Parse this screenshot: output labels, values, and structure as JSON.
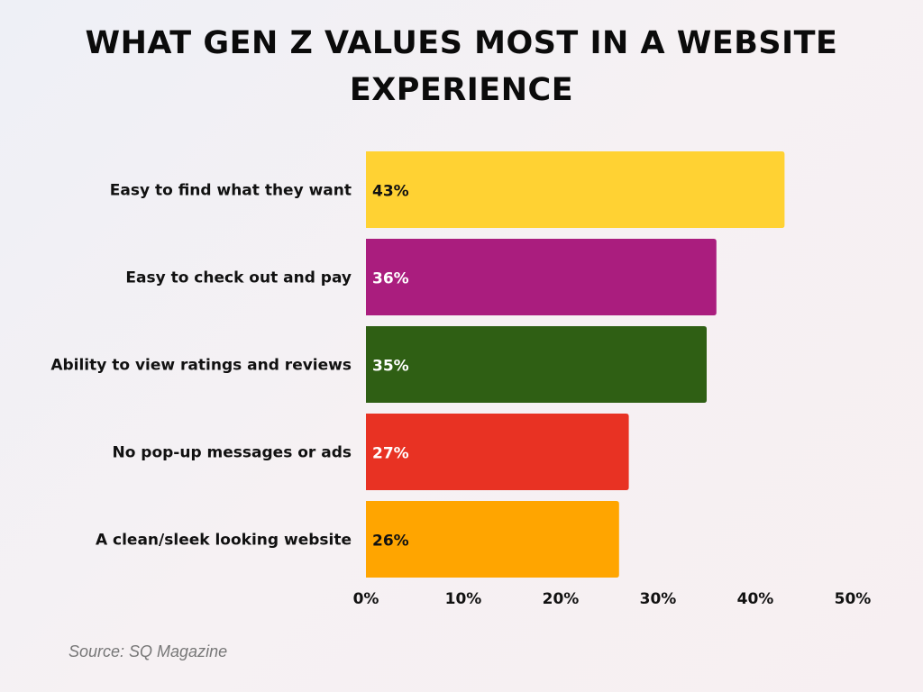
{
  "chart_data": {
    "type": "bar",
    "orientation": "horizontal",
    "title": "WHAT GEN Z VALUES MOST IN A WEBSITE EXPERIENCE",
    "categories": [
      "Easy to find what they want",
      "Easy to check out and pay",
      "Ability to view ratings and reviews",
      "No pop-up messages or ads",
      "A clean/sleek looking website"
    ],
    "values": [
      43,
      36,
      35,
      27,
      26
    ],
    "data_labels": [
      "43%",
      "36%",
      "35%",
      "27%",
      "26%"
    ],
    "colors": [
      "#FFD233",
      "#AA1D7E",
      "#2F5F14",
      "#E83223",
      "#FFA500"
    ],
    "label_colors": [
      "#111111",
      "#ffffff",
      "#ffffff",
      "#ffffff",
      "#111111"
    ],
    "xlim": [
      0,
      50
    ],
    "x_ticks": [
      0,
      10,
      20,
      30,
      40,
      50
    ],
    "x_tick_labels": [
      "0%",
      "10%",
      "20%",
      "30%",
      "40%",
      "50%"
    ],
    "xlabel": "",
    "ylabel": "",
    "grid": false,
    "legend": "none"
  },
  "source": "Source: SQ Magazine"
}
